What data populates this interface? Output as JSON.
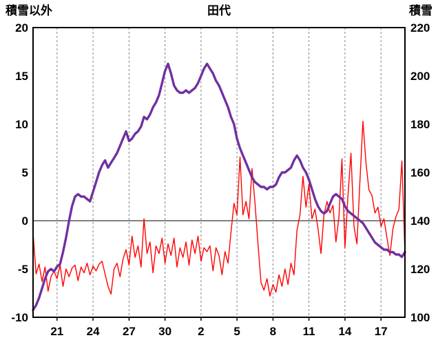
{
  "chart_data": {
    "type": "line",
    "title": "田代",
    "legend": "none",
    "grid": "vertical-dashed",
    "colors": {
      "red_series": "#FF0000",
      "purple_series": "#7030A0",
      "grid_line": "#808080",
      "zero_line": "#808080",
      "frame": "#000000",
      "background": "#FFFFFF",
      "text": "#000000"
    },
    "left_axis": {
      "title": "積雪以外",
      "min": -10,
      "max": 20,
      "ticks": [
        20,
        15,
        10,
        5,
        0,
        -5,
        -10
      ]
    },
    "right_axis": {
      "title": "積雪",
      "min": 100,
      "max": 220,
      "ticks": [
        220,
        200,
        180,
        160,
        140,
        120,
        100
      ]
    },
    "x_axis": {
      "min_day": 0,
      "max_day": 31,
      "ticks": [
        {
          "day": 2,
          "label": "21"
        },
        {
          "day": 5,
          "label": "24"
        },
        {
          "day": 8,
          "label": "27"
        },
        {
          "day": 11,
          "label": "30"
        },
        {
          "day": 14,
          "label": "2"
        },
        {
          "day": 17,
          "label": "5"
        },
        {
          "day": 20,
          "label": "8"
        },
        {
          "day": 23,
          "label": "11"
        },
        {
          "day": 26,
          "label": "14"
        },
        {
          "day": 29,
          "label": "17"
        }
      ]
    },
    "zero_line_left_value": 0,
    "series": [
      {
        "name": "積雪以外",
        "axis": "left",
        "color": "#FF0000",
        "width": 1.4,
        "start_day": 0,
        "step_days": 0.25,
        "values": [
          -1.3,
          -5.5,
          -4.5,
          -6.3,
          -4.8,
          -7.3,
          -5.8,
          -5.2,
          -6.0,
          -4.6,
          -6.8,
          -5.0,
          -5.8,
          -4.9,
          -4.6,
          -6.2,
          -4.8,
          -5.4,
          -4.4,
          -5.6,
          -4.7,
          -5.2,
          -4.5,
          -4.2,
          -5.5,
          -6.8,
          -7.6,
          -5.0,
          -4.4,
          -5.8,
          -4.0,
          -3.0,
          -4.6,
          -1.6,
          -3.8,
          -2.6,
          -4.8,
          0.2,
          -3.4,
          -2.2,
          -5.4,
          -2.6,
          -3.4,
          -1.8,
          -4.4,
          -2.4,
          -3.6,
          -1.8,
          -4.8,
          -2.8,
          -3.8,
          -2.2,
          -4.6,
          -2.0,
          -3.4,
          -1.6,
          -4.2,
          -2.8,
          -3.2,
          -2.6,
          -5.2,
          -2.8,
          -3.6,
          -5.6,
          -3.2,
          -4.4,
          -1.2,
          1.8,
          0.6,
          6.6,
          0.6,
          2.0,
          0.2,
          5.4,
          1.8,
          -2.4,
          -6.4,
          -7.2,
          -6.0,
          -7.8,
          -6.6,
          -7.4,
          -5.6,
          -6.8,
          -5.0,
          -6.6,
          -4.4,
          -5.6,
          -1.0,
          0.6,
          4.6,
          1.4,
          3.8,
          0.2,
          1.2,
          -0.8,
          -3.4,
          0.6,
          2.0,
          0.8,
          1.6,
          -2.2,
          0.4,
          6.4,
          -2.8,
          2.6,
          7.0,
          -0.6,
          -2.4,
          4.2,
          10.3,
          6.0,
          3.2,
          2.6,
          0.8,
          1.4,
          -0.6,
          0.2,
          -1.8,
          -3.6,
          -0.8,
          0.4,
          1.2,
          6.2,
          -3.4
        ]
      },
      {
        "name": "積雪",
        "axis": "right",
        "color": "#7030A0",
        "width": 3.4,
        "start_day": 0,
        "step_days": 0.25,
        "values": [
          103,
          105,
          108,
          112,
          116,
          119,
          120,
          119,
          121,
          122,
          127,
          133,
          140,
          146,
          150,
          151,
          150,
          150,
          149,
          148,
          152,
          156,
          160,
          163,
          165,
          162,
          164,
          166,
          168,
          171,
          174,
          177,
          173,
          174,
          176,
          177,
          179,
          183,
          182,
          184,
          187,
          189,
          192,
          197,
          202,
          205,
          201,
          196,
          194,
          193,
          193,
          194,
          193,
          194,
          195,
          197,
          200,
          203,
          205,
          203,
          201,
          198,
          196,
          193,
          190,
          187,
          183,
          180,
          174,
          170,
          167,
          164,
          161,
          158,
          156,
          155,
          154,
          154,
          153,
          154,
          154,
          155,
          158,
          160,
          160,
          161,
          162,
          165,
          167,
          165,
          162,
          160,
          157,
          153,
          149,
          146,
          144,
          143,
          144,
          147,
          150,
          151,
          150,
          149,
          146,
          144,
          143,
          142,
          141,
          140,
          139,
          137,
          135,
          133,
          131,
          130,
          129,
          128,
          128,
          127,
          127,
          126,
          126,
          125,
          127
        ]
      }
    ]
  }
}
